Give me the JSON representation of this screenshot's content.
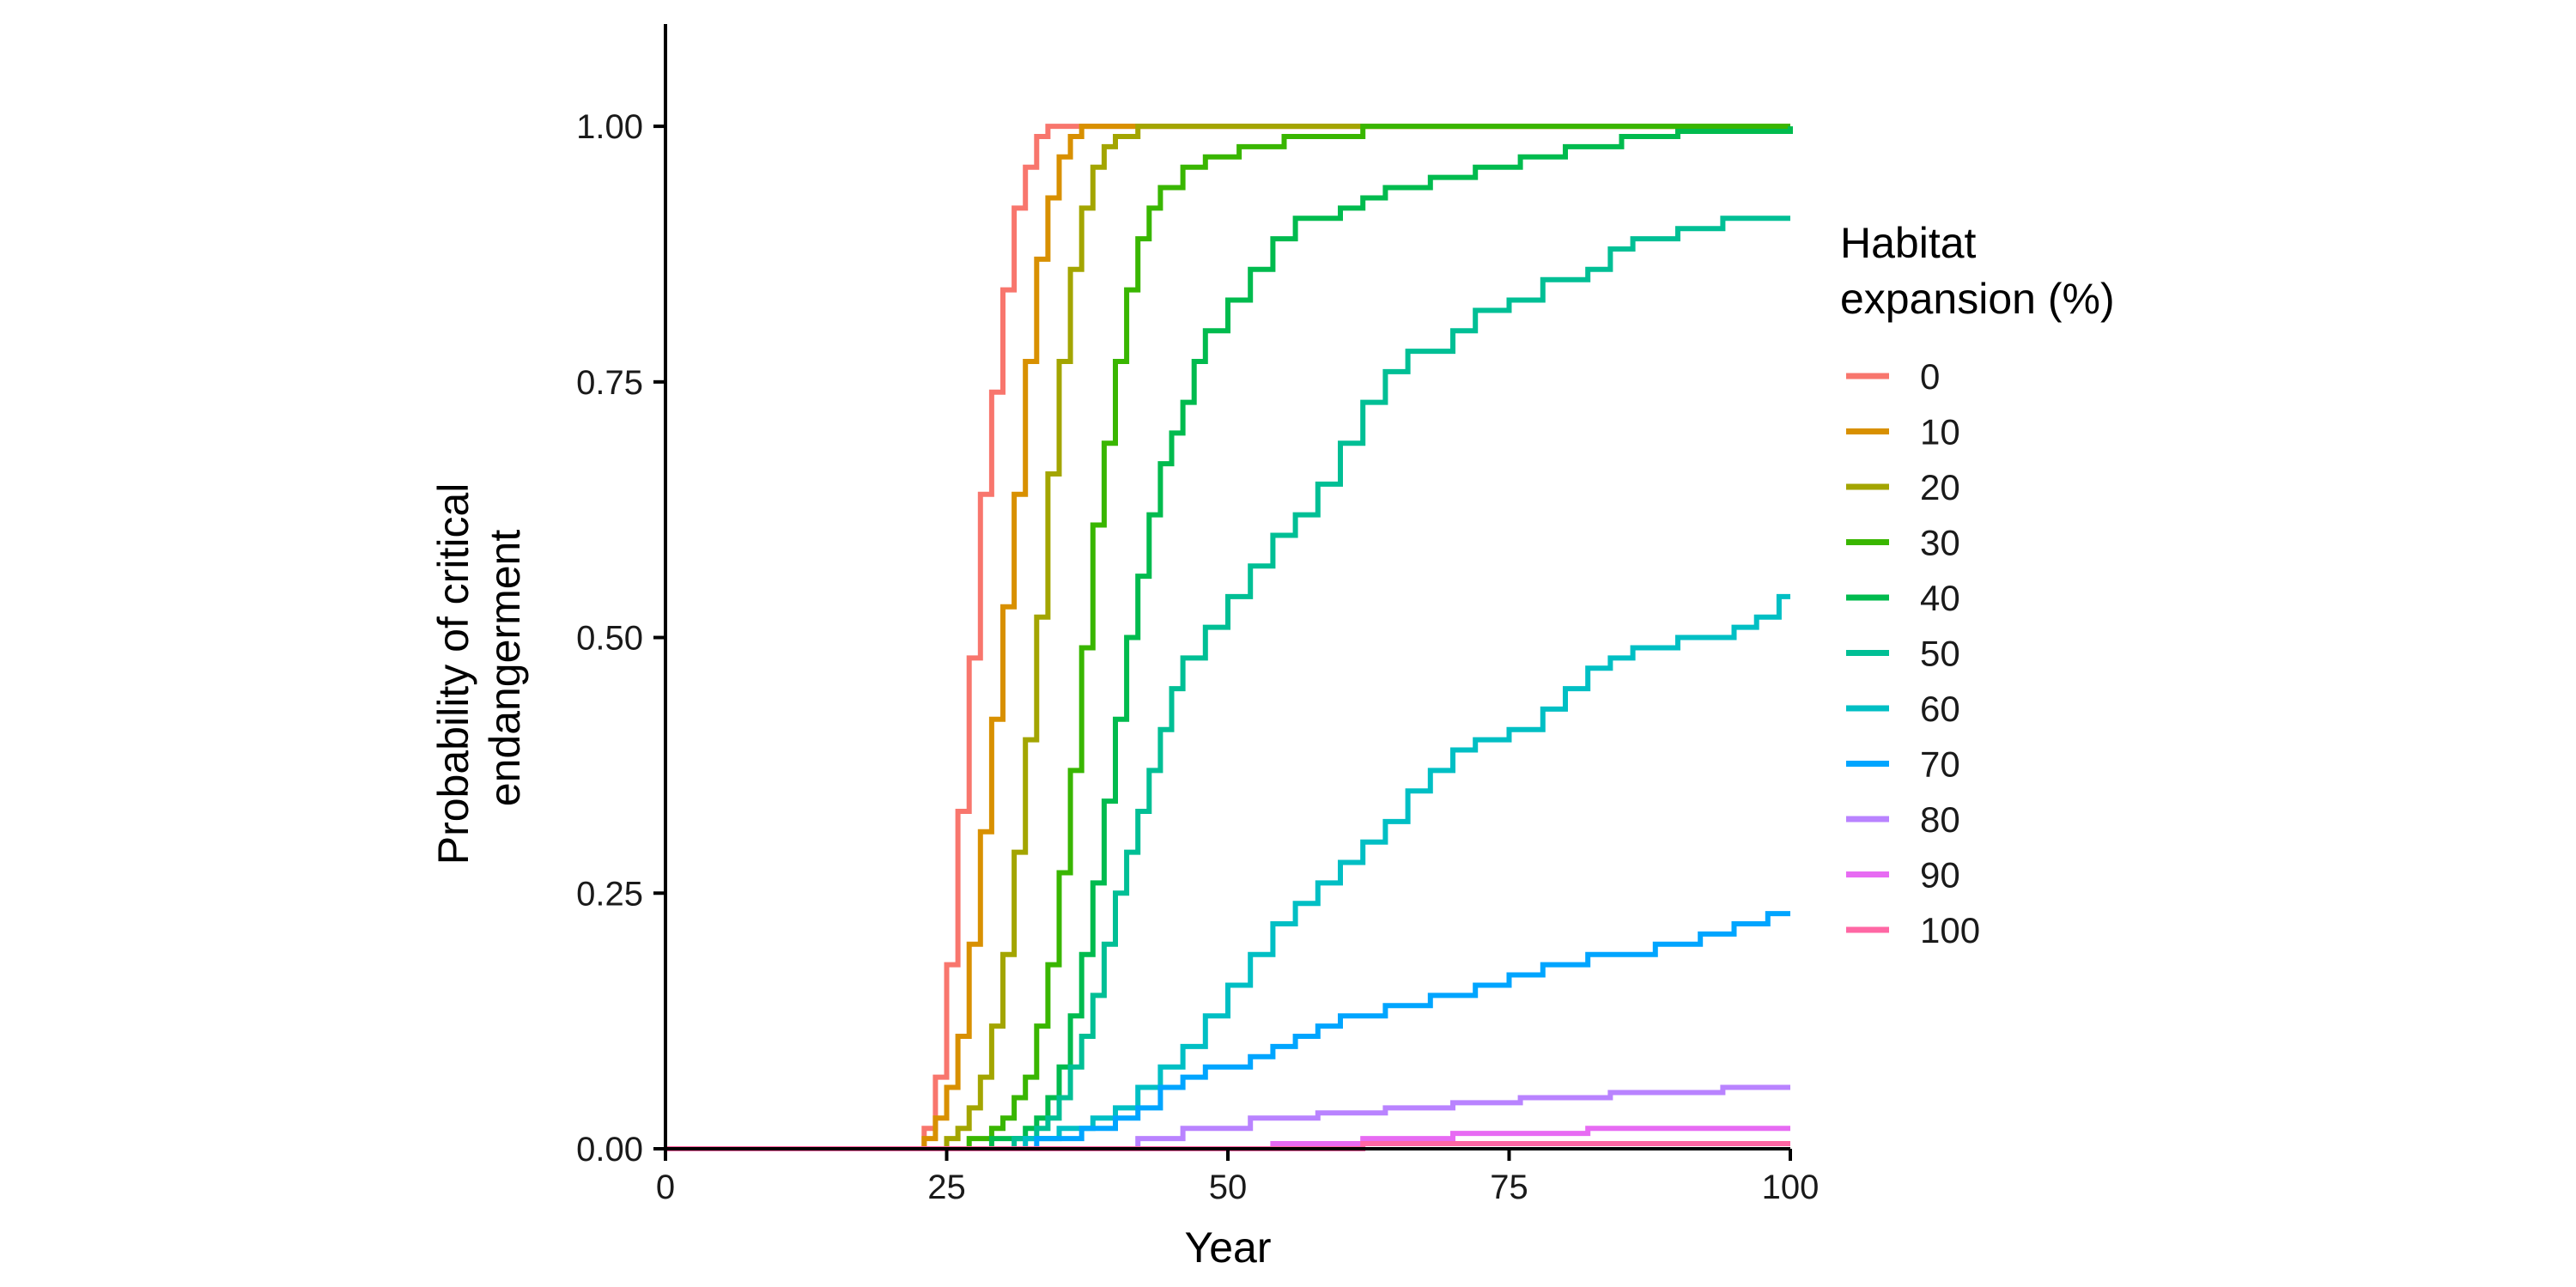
{
  "chart_data": {
    "type": "line",
    "step": true,
    "xlabel": "Year",
    "ylabel_lines": [
      "Probability of critical",
      "endangerment"
    ],
    "xlim": [
      0,
      100
    ],
    "ylim": [
      0,
      1.1
    ],
    "x_ticks": [
      0,
      25,
      50,
      75,
      100
    ],
    "x_tick_labels": [
      "0",
      "25",
      "50",
      "75",
      "100"
    ],
    "y_ticks": [
      0,
      0.25,
      0.5,
      0.75,
      1.0
    ],
    "y_tick_labels": [
      "0.00",
      "0.25",
      "0.50",
      "0.75",
      "1.00"
    ],
    "grid": false,
    "legend": {
      "position": "right",
      "title_lines": [
        "Habitat",
        "expansion (%)"
      ]
    },
    "series": [
      {
        "name": "0",
        "color": "#F8766D",
        "points": [
          [
            0,
            0
          ],
          [
            22,
            0
          ],
          [
            23,
            0.02
          ],
          [
            24,
            0.07
          ],
          [
            25,
            0.18
          ],
          [
            26,
            0.33
          ],
          [
            27,
            0.48
          ],
          [
            28,
            0.64
          ],
          [
            29,
            0.74
          ],
          [
            30,
            0.84
          ],
          [
            31,
            0.92
          ],
          [
            32,
            0.96
          ],
          [
            33,
            0.99
          ],
          [
            34,
            1.0
          ],
          [
            100,
            1.0
          ]
        ]
      },
      {
        "name": "10",
        "color": "#D89000",
        "points": [
          [
            0,
            0
          ],
          [
            22,
            0
          ],
          [
            23,
            0.01
          ],
          [
            24,
            0.03
          ],
          [
            25,
            0.06
          ],
          [
            26,
            0.11
          ],
          [
            27,
            0.2
          ],
          [
            28,
            0.31
          ],
          [
            29,
            0.42
          ],
          [
            30,
            0.53
          ],
          [
            31,
            0.64
          ],
          [
            32,
            0.77
          ],
          [
            33,
            0.87
          ],
          [
            34,
            0.93
          ],
          [
            35,
            0.97
          ],
          [
            36,
            0.99
          ],
          [
            37,
            1.0
          ],
          [
            100,
            1.0
          ]
        ]
      },
      {
        "name": "20",
        "color": "#A3A500",
        "points": [
          [
            0,
            0
          ],
          [
            24,
            0
          ],
          [
            25,
            0.01
          ],
          [
            26,
            0.02
          ],
          [
            27,
            0.04
          ],
          [
            28,
            0.07
          ],
          [
            29,
            0.12
          ],
          [
            30,
            0.19
          ],
          [
            31,
            0.29
          ],
          [
            32,
            0.4
          ],
          [
            33,
            0.52
          ],
          [
            34,
            0.66
          ],
          [
            35,
            0.77
          ],
          [
            36,
            0.86
          ],
          [
            37,
            0.92
          ],
          [
            38,
            0.96
          ],
          [
            39,
            0.98
          ],
          [
            40,
            0.99
          ],
          [
            42,
            1.0
          ],
          [
            100,
            1.0
          ]
        ]
      },
      {
        "name": "30",
        "color": "#39B600",
        "points": [
          [
            0,
            0
          ],
          [
            26,
            0
          ],
          [
            27,
            0.01
          ],
          [
            29,
            0.02
          ],
          [
            30,
            0.03
          ],
          [
            31,
            0.05
          ],
          [
            32,
            0.07
          ],
          [
            33,
            0.12
          ],
          [
            34,
            0.18
          ],
          [
            35,
            0.27
          ],
          [
            36,
            0.37
          ],
          [
            37,
            0.49
          ],
          [
            38,
            0.61
          ],
          [
            39,
            0.69
          ],
          [
            40,
            0.77
          ],
          [
            41,
            0.84
          ],
          [
            42,
            0.89
          ],
          [
            43,
            0.92
          ],
          [
            44,
            0.94
          ],
          [
            46,
            0.96
          ],
          [
            48,
            0.97
          ],
          [
            51,
            0.98
          ],
          [
            55,
            0.99
          ],
          [
            62,
            1.0
          ],
          [
            100,
            1.0
          ]
        ]
      },
      {
        "name": "40",
        "color": "#00BB4E",
        "points": [
          [
            0,
            0
          ],
          [
            28,
            0
          ],
          [
            29,
            0.01
          ],
          [
            32,
            0.02
          ],
          [
            33,
            0.03
          ],
          [
            34,
            0.05
          ],
          [
            35,
            0.08
          ],
          [
            36,
            0.13
          ],
          [
            37,
            0.19
          ],
          [
            38,
            0.26
          ],
          [
            39,
            0.34
          ],
          [
            40,
            0.42
          ],
          [
            41,
            0.5
          ],
          [
            42,
            0.56
          ],
          [
            43,
            0.62
          ],
          [
            44,
            0.67
          ],
          [
            45,
            0.7
          ],
          [
            46,
            0.73
          ],
          [
            47,
            0.77
          ],
          [
            48,
            0.8
          ],
          [
            50,
            0.83
          ],
          [
            52,
            0.86
          ],
          [
            54,
            0.89
          ],
          [
            56,
            0.91
          ],
          [
            60,
            0.92
          ],
          [
            62,
            0.93
          ],
          [
            64,
            0.94
          ],
          [
            68,
            0.95
          ],
          [
            72,
            0.96
          ],
          [
            76,
            0.97
          ],
          [
            80,
            0.98
          ],
          [
            85,
            0.99
          ],
          [
            90,
            0.995
          ],
          [
            100,
            1.0
          ]
        ]
      },
      {
        "name": "50",
        "color": "#00BF95",
        "points": [
          [
            0,
            0
          ],
          [
            30,
            0
          ],
          [
            31,
            0.01
          ],
          [
            33,
            0.02
          ],
          [
            34,
            0.03
          ],
          [
            35,
            0.05
          ],
          [
            36,
            0.08
          ],
          [
            37,
            0.11
          ],
          [
            38,
            0.15
          ],
          [
            39,
            0.2
          ],
          [
            40,
            0.25
          ],
          [
            41,
            0.29
          ],
          [
            42,
            0.33
          ],
          [
            43,
            0.37
          ],
          [
            44,
            0.41
          ],
          [
            45,
            0.45
          ],
          [
            46,
            0.48
          ],
          [
            48,
            0.51
          ],
          [
            50,
            0.54
          ],
          [
            52,
            0.57
          ],
          [
            54,
            0.6
          ],
          [
            56,
            0.62
          ],
          [
            58,
            0.65
          ],
          [
            60,
            0.69
          ],
          [
            62,
            0.73
          ],
          [
            64,
            0.76
          ],
          [
            66,
            0.78
          ],
          [
            70,
            0.8
          ],
          [
            72,
            0.82
          ],
          [
            75,
            0.83
          ],
          [
            78,
            0.85
          ],
          [
            82,
            0.86
          ],
          [
            84,
            0.88
          ],
          [
            86,
            0.89
          ],
          [
            90,
            0.9
          ],
          [
            94,
            0.91
          ],
          [
            100,
            0.91
          ]
        ]
      },
      {
        "name": "60",
        "color": "#00BFC4",
        "points": [
          [
            0,
            0
          ],
          [
            30,
            0
          ],
          [
            32,
            0.01
          ],
          [
            35,
            0.02
          ],
          [
            38,
            0.03
          ],
          [
            40,
            0.04
          ],
          [
            42,
            0.06
          ],
          [
            44,
            0.08
          ],
          [
            46,
            0.1
          ],
          [
            48,
            0.13
          ],
          [
            50,
            0.16
          ],
          [
            52,
            0.19
          ],
          [
            54,
            0.22
          ],
          [
            56,
            0.24
          ],
          [
            58,
            0.26
          ],
          [
            60,
            0.28
          ],
          [
            62,
            0.3
          ],
          [
            64,
            0.32
          ],
          [
            66,
            0.35
          ],
          [
            68,
            0.37
          ],
          [
            70,
            0.39
          ],
          [
            72,
            0.4
          ],
          [
            75,
            0.41
          ],
          [
            78,
            0.43
          ],
          [
            80,
            0.45
          ],
          [
            82,
            0.47
          ],
          [
            84,
            0.48
          ],
          [
            86,
            0.49
          ],
          [
            90,
            0.5
          ],
          [
            95,
            0.51
          ],
          [
            97,
            0.52
          ],
          [
            99,
            0.54
          ],
          [
            100,
            0.54
          ]
        ]
      },
      {
        "name": "70",
        "color": "#00A5FF",
        "points": [
          [
            0,
            0
          ],
          [
            30,
            0
          ],
          [
            33,
            0.01
          ],
          [
            37,
            0.02
          ],
          [
            40,
            0.03
          ],
          [
            42,
            0.04
          ],
          [
            44,
            0.06
          ],
          [
            46,
            0.07
          ],
          [
            48,
            0.08
          ],
          [
            52,
            0.09
          ],
          [
            54,
            0.1
          ],
          [
            56,
            0.11
          ],
          [
            58,
            0.12
          ],
          [
            60,
            0.13
          ],
          [
            64,
            0.14
          ],
          [
            68,
            0.15
          ],
          [
            72,
            0.16
          ],
          [
            75,
            0.17
          ],
          [
            78,
            0.18
          ],
          [
            82,
            0.19
          ],
          [
            88,
            0.2
          ],
          [
            92,
            0.21
          ],
          [
            95,
            0.22
          ],
          [
            98,
            0.23
          ],
          [
            100,
            0.23
          ]
        ]
      },
      {
        "name": "80",
        "color": "#B983FF",
        "points": [
          [
            0,
            0
          ],
          [
            40,
            0
          ],
          [
            42,
            0.01
          ],
          [
            46,
            0.02
          ],
          [
            52,
            0.03
          ],
          [
            58,
            0.035
          ],
          [
            64,
            0.04
          ],
          [
            70,
            0.045
          ],
          [
            76,
            0.05
          ],
          [
            84,
            0.055
          ],
          [
            94,
            0.06
          ],
          [
            100,
            0.06
          ]
        ]
      },
      {
        "name": "90",
        "color": "#E76BF3",
        "points": [
          [
            0,
            0
          ],
          [
            52,
            0
          ],
          [
            54,
            0.005
          ],
          [
            62,
            0.01
          ],
          [
            70,
            0.015
          ],
          [
            82,
            0.02
          ],
          [
            100,
            0.02
          ]
        ]
      },
      {
        "name": "100",
        "color": "#FF67A4",
        "points": [
          [
            0,
            0
          ],
          [
            61,
            0
          ],
          [
            62,
            0.005
          ],
          [
            100,
            0.005
          ]
        ]
      }
    ]
  }
}
